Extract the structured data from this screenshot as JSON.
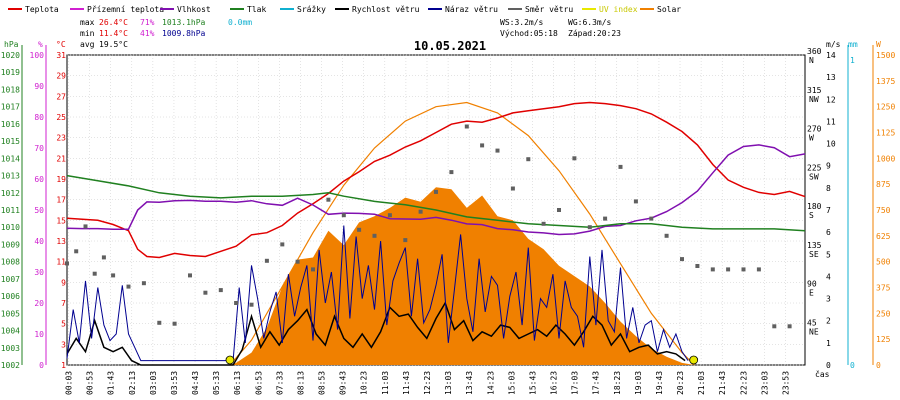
{
  "legend": [
    {
      "label": "Teplota",
      "color": "#e00000"
    },
    {
      "label": "Přízemní teplota",
      "color": "#d020d0"
    },
    {
      "label": "Vlhkost",
      "color": "#8010b0"
    },
    {
      "label": "Tlak",
      "color": "#208020"
    },
    {
      "label": "Srážky",
      "color": "#10b0d0"
    },
    {
      "label": "Rychlost větru",
      "color": "#000000"
    },
    {
      "label": "Náraz větru",
      "color": "#000090"
    },
    {
      "label": "Směr větru",
      "color": "#606060"
    },
    {
      "label": "UV index",
      "color": "#e8e800"
    },
    {
      "label": "Solar",
      "color": "#f08000"
    }
  ],
  "stats": {
    "max_label": "max",
    "max_temp": "26.4°C",
    "max_hum": "71%",
    "max_press": "1013.1hPa",
    "max_rain": "0.0mm",
    "min_label": "min",
    "min_temp": "11.4°C",
    "min_hum": "41%",
    "min_press": "1009.8hPa",
    "avg_label": "avg",
    "avg_temp": "19.5°C",
    "ws": "WS:3.2m/s",
    "wg": "WG:6.3m/s",
    "sunrise": "Východ:05:18",
    "sunset": "Západ:20:23"
  },
  "colors": {
    "temp": "#e00000",
    "hum": "#8010b0",
    "press": "#208020",
    "rain": "#10b0d0",
    "wind": "#000000",
    "gust": "#000090",
    "dir": "#606060",
    "uv": "#e8e800",
    "solar": "#f08000",
    "pressure_axis": "#208020",
    "hum_axis": "#d020d0"
  },
  "chart_data": {
    "type": "line",
    "title": "10.05.2021",
    "x_ticks": [
      "00:03",
      "00:53",
      "01:43",
      "02:13",
      "03:03",
      "03:53",
      "04:43",
      "05:33",
      "06:13",
      "06:53",
      "07:33",
      "08:13",
      "08:53",
      "09:43",
      "10:23",
      "11:03",
      "11:43",
      "12:23",
      "13:03",
      "13:43",
      "14:23",
      "15:03",
      "15:43",
      "16:23",
      "17:03",
      "17:43",
      "18:23",
      "19:03",
      "19:43",
      "20:23",
      "21:03",
      "21:43",
      "22:23",
      "23:03",
      "23:53"
    ],
    "xlabel": "čas",
    "x_range": [
      0,
      24
    ],
    "axes": {
      "pressure": {
        "unit": "hPa",
        "range": [
          1002,
          1020
        ],
        "ticks": [
          1002,
          1003,
          1004,
          1005,
          1006,
          1007,
          1008,
          1009,
          1010,
          1011,
          1012,
          1013,
          1014,
          1015,
          1016,
          1017,
          1018,
          1019,
          1020
        ]
      },
      "humidity": {
        "unit": "%",
        "range": [
          0,
          100
        ],
        "ticks": [
          0,
          10,
          20,
          30,
          40,
          50,
          60,
          70,
          80,
          90,
          100
        ]
      },
      "temperature": {
        "unit": "°C",
        "range": [
          1,
          31
        ],
        "ticks": [
          1,
          3,
          5,
          7,
          9,
          11,
          13,
          15,
          17,
          19,
          21,
          23,
          25,
          27,
          29,
          31
        ]
      },
      "wind": {
        "unit": "m/s",
        "range": [
          0,
          14
        ],
        "ticks": [
          0,
          1,
          2,
          3,
          4,
          5,
          6,
          7,
          8,
          9,
          10,
          11,
          12,
          13,
          14
        ]
      },
      "rain": {
        "unit": "mm",
        "range": [
          0,
          1
        ],
        "ticks": [
          0,
          1
        ]
      },
      "solar": {
        "unit": "W",
        "range": [
          0,
          1500
        ],
        "ticks": [
          0,
          125,
          250,
          375,
          500,
          625,
          750,
          875,
          1000,
          1125,
          1250,
          1375,
          1500
        ]
      },
      "direction": {
        "labels": [
          {
            "deg": 360,
            "l": "360\nN"
          },
          {
            "deg": 315,
            "l": "315\nNW"
          },
          {
            "deg": 270,
            "l": "270\nW"
          },
          {
            "deg": 225,
            "l": "225\nSW"
          },
          {
            "deg": 180,
            "l": "180\nS"
          },
          {
            "deg": 135,
            "l": "135\nSE"
          },
          {
            "deg": 90,
            "l": "90\nE"
          },
          {
            "deg": 45,
            "l": "45\nNE"
          }
        ]
      }
    },
    "series": [
      {
        "name": "Teplota",
        "key": "temp",
        "x": [
          0,
          0.5,
          1,
          1.5,
          2,
          2.3,
          2.6,
          3,
          3.5,
          4,
          4.5,
          5,
          5.5,
          6,
          6.5,
          7,
          7.5,
          8,
          8.5,
          9,
          9.5,
          10,
          10.5,
          11,
          11.5,
          12,
          12.5,
          13,
          13.5,
          14,
          14.5,
          15,
          15.5,
          16,
          16.5,
          17,
          17.5,
          18,
          18.5,
          19,
          19.5,
          20,
          20.5,
          21,
          21.5,
          22,
          22.5,
          23,
          23.5,
          24
        ],
        "y": [
          15.2,
          15.1,
          15.0,
          14.6,
          14.0,
          12.2,
          11.5,
          11.4,
          11.8,
          11.6,
          11.5,
          12.0,
          12.5,
          13.6,
          13.8,
          14.5,
          15.7,
          16.6,
          17.6,
          18.8,
          19.7,
          20.7,
          21.3,
          22.1,
          22.7,
          23.5,
          24.3,
          24.6,
          24.5,
          24.9,
          25.4,
          25.6,
          25.8,
          26.0,
          26.3,
          26.4,
          26.3,
          26.1,
          25.8,
          25.3,
          24.5,
          23.6,
          22.3,
          20.4,
          18.9,
          18.2,
          17.7,
          17.5,
          17.8,
          17.3
        ]
      },
      {
        "name": "Vlhkost",
        "key": "hum",
        "x": [
          0,
          0.5,
          1,
          1.5,
          2,
          2.3,
          2.6,
          3,
          3.5,
          4,
          4.5,
          5,
          5.5,
          6,
          6.5,
          7,
          7.5,
          8,
          8.5,
          9,
          9.5,
          10,
          10.5,
          11,
          11.5,
          12,
          12.5,
          13,
          13.5,
          14,
          14.5,
          15,
          15.5,
          16,
          16.5,
          17,
          17.5,
          18,
          18.5,
          19,
          19.5,
          20,
          20.5,
          21,
          21.5,
          22,
          22.5,
          23,
          23.5,
          24
        ],
        "y": [
          44.1,
          44.0,
          44.0,
          43.8,
          43.8,
          50.0,
          52.6,
          52.5,
          53.0,
          53.1,
          52.8,
          52.8,
          52.5,
          53.0,
          52.0,
          51.5,
          53.8,
          51.6,
          48.6,
          49.0,
          48.9,
          48.6,
          47.2,
          47.1,
          47.0,
          47.6,
          46.7,
          45.5,
          45.3,
          44.0,
          43.6,
          42.9,
          42.6,
          42.1,
          42.3,
          43.2,
          44.7,
          45.0,
          46.5,
          47.4,
          49.5,
          52.4,
          56.1,
          62.0,
          67.7,
          70.5,
          71.0,
          70.1,
          67.2,
          68.1
        ]
      },
      {
        "name": "Tlak",
        "key": "press",
        "x": [
          0,
          1,
          2,
          3,
          4,
          5,
          6,
          7,
          8,
          8.5,
          9,
          10,
          11,
          12,
          13,
          14,
          15,
          16,
          17,
          18,
          19,
          20,
          21,
          22,
          23,
          24
        ],
        "y": [
          1013.0,
          1012.7,
          1012.4,
          1012.0,
          1011.8,
          1011.7,
          1011.8,
          1011.8,
          1011.9,
          1012.0,
          1011.8,
          1011.5,
          1011.3,
          1011.0,
          1010.6,
          1010.4,
          1010.2,
          1010.1,
          1010.0,
          1010.2,
          1010.2,
          1010.0,
          1009.9,
          1009.9,
          1009.9,
          1009.8
        ]
      },
      {
        "name": "Rychlost větru",
        "key": "wind",
        "x": [
          0,
          0.3,
          0.6,
          0.9,
          1.2,
          1.5,
          1.8,
          2.1,
          2.4,
          5.4,
          5.7,
          6.0,
          6.3,
          6.6,
          6.9,
          7.2,
          7.5,
          7.8,
          8.1,
          8.4,
          8.7,
          9.0,
          9.3,
          9.6,
          9.9,
          10.2,
          10.5,
          10.8,
          11.1,
          11.4,
          11.7,
          12.0,
          12.3,
          12.6,
          12.9,
          13.2,
          13.5,
          13.8,
          14.1,
          14.4,
          14.7,
          15.0,
          15.3,
          15.6,
          15.9,
          16.2,
          16.5,
          16.8,
          17.1,
          17.4,
          17.7,
          18.0,
          18.3,
          18.6,
          18.9,
          19.2,
          19.5,
          19.8,
          20.1
        ],
        "y": [
          0.5,
          1.2,
          0.6,
          2.0,
          0.8,
          0.6,
          0.8,
          0.2,
          0,
          0,
          0.7,
          2.2,
          0.8,
          1.5,
          0.9,
          1.6,
          2.0,
          2.5,
          1.4,
          0.9,
          2.2,
          1.2,
          0.8,
          1.4,
          0.8,
          1.5,
          2.6,
          2.2,
          2.3,
          1.7,
          1.2,
          2.1,
          2.8,
          1.6,
          2.0,
          1.1,
          1.5,
          1.3,
          1.8,
          1.7,
          1.2,
          1.4,
          1.6,
          1.3,
          1.8,
          1.4,
          0.9,
          1.5,
          2.2,
          1.8,
          0.9,
          1.4,
          0.6,
          0.8,
          0.9,
          0.5,
          0.6,
          0.5,
          0.2
        ]
      },
      {
        "name": "Náraz větru",
        "key": "gust",
        "x": [
          0,
          0.2,
          0.4,
          0.6,
          0.8,
          1.0,
          1.2,
          1.4,
          1.6,
          1.8,
          2.0,
          2.2,
          2.4,
          5.4,
          5.6,
          5.8,
          6.0,
          6.2,
          6.4,
          6.6,
          6.8,
          7.0,
          7.2,
          7.4,
          7.6,
          7.8,
          8.0,
          8.2,
          8.4,
          8.6,
          8.8,
          9.0,
          9.2,
          9.4,
          9.6,
          9.8,
          10.0,
          10.2,
          10.4,
          10.6,
          10.8,
          11.0,
          11.2,
          11.4,
          11.6,
          11.8,
          12.0,
          12.2,
          12.4,
          12.6,
          12.8,
          13.0,
          13.2,
          13.4,
          13.6,
          13.8,
          14.0,
          14.2,
          14.4,
          14.6,
          14.8,
          15.0,
          15.2,
          15.4,
          15.6,
          15.8,
          16.0,
          16.2,
          16.4,
          16.6,
          16.8,
          17.0,
          17.2,
          17.4,
          17.6,
          17.8,
          18.0,
          18.2,
          18.4,
          18.6,
          18.8,
          19.0,
          19.2,
          19.4,
          19.6,
          19.8,
          20.0,
          20.2
        ],
        "y": [
          0.3,
          2.5,
          1.0,
          3.8,
          1.2,
          3.5,
          1.8,
          1.1,
          1.4,
          3.6,
          1.4,
          0.8,
          0.2,
          0.2,
          3.5,
          1.0,
          4.5,
          3.0,
          1.2,
          2.4,
          3.3,
          1.0,
          4.1,
          2.2,
          3.5,
          4.5,
          1.1,
          5.2,
          2.8,
          4.2,
          1.6,
          6.3,
          2.1,
          5.8,
          3.0,
          4.5,
          2.5,
          5.6,
          1.8,
          3.8,
          4.6,
          5.3,
          2.2,
          4.8,
          1.9,
          2.5,
          3.6,
          5.0,
          1.0,
          3.4,
          5.9,
          3.0,
          1.5,
          4.8,
          2.4,
          4.0,
          3.6,
          1.2,
          3.1,
          4.2,
          1.8,
          5.3,
          1.1,
          3.0,
          2.6,
          4.1,
          1.2,
          3.8,
          2.6,
          2.2,
          0.8,
          4.9,
          1.8,
          5.2,
          2.0,
          1.5,
          4.4,
          1.2,
          2.6,
          1.0,
          1.8,
          2.0,
          0.6,
          1.6,
          0.8,
          1.4,
          0.6,
          0.2
        ]
      },
      {
        "name": "Směr větru",
        "key": "dir",
        "x": [
          0,
          0.3,
          0.6,
          0.9,
          1.2,
          1.5,
          2.0,
          2.5,
          3.0,
          3.5,
          4.0,
          4.5,
          5.0,
          5.5,
          6.0,
          6.5,
          7.0,
          7.5,
          8.0,
          8.5,
          9.0,
          9.5,
          10.0,
          10.5,
          11.0,
          11.5,
          12.0,
          12.5,
          13.0,
          13.5,
          14.0,
          14.5,
          15.0,
          15.5,
          16.0,
          16.5,
          17.0,
          17.5,
          18.0,
          18.5,
          19.0,
          19.5,
          20.0,
          20.5,
          21.0,
          21.5,
          22.0,
          22.5,
          23.0,
          23.5
        ],
        "y": [
          118,
          132,
          161,
          106,
          125,
          104,
          91,
          95,
          49,
          48,
          104,
          84,
          87,
          72,
          70,
          121,
          140,
          120,
          111,
          192,
          174,
          157,
          150,
          174,
          145,
          178,
          201,
          224,
          277,
          255,
          249,
          205,
          239,
          164,
          180,
          240,
          160,
          170,
          230,
          190,
          170,
          150,
          123,
          115,
          111,
          111,
          111,
          111,
          45,
          45
        ]
      },
      {
        "name": "Solar",
        "key": "solar",
        "x": [
          5.3,
          5.5,
          6.0,
          6.5,
          7.0,
          7.5,
          8.0,
          8.5,
          9.0,
          9.5,
          10.0,
          10.5,
          11.0,
          11.5,
          12.0,
          12.5,
          13.0,
          13.5,
          14.0,
          14.5,
          15.0,
          15.5,
          16.0,
          16.5,
          17.0,
          17.5,
          18.0,
          18.5,
          19.0,
          19.5,
          20.0,
          20.4
        ],
        "y": [
          0,
          10,
          60,
          180,
          380,
          510,
          520,
          650,
          580,
          690,
          720,
          760,
          810,
          790,
          860,
          850,
          760,
          820,
          720,
          700,
          610,
          560,
          480,
          430,
          380,
          300,
          210,
          140,
          80,
          40,
          10,
          0
        ]
      }
    ],
    "solar_theoretical": {
      "x": [
        5.3,
        6,
        7,
        8,
        9,
        10,
        11,
        12,
        13,
        14,
        15,
        16,
        17,
        18,
        19,
        20,
        20.4
      ],
      "y": [
        0,
        120,
        380,
        640,
        870,
        1050,
        1180,
        1250,
        1270,
        1220,
        1110,
        940,
        730,
        490,
        250,
        60,
        0
      ]
    },
    "sun_markers": [
      {
        "x": 5.3,
        "label": "sunrise"
      },
      {
        "x": 20.38,
        "label": "sunset"
      }
    ]
  }
}
